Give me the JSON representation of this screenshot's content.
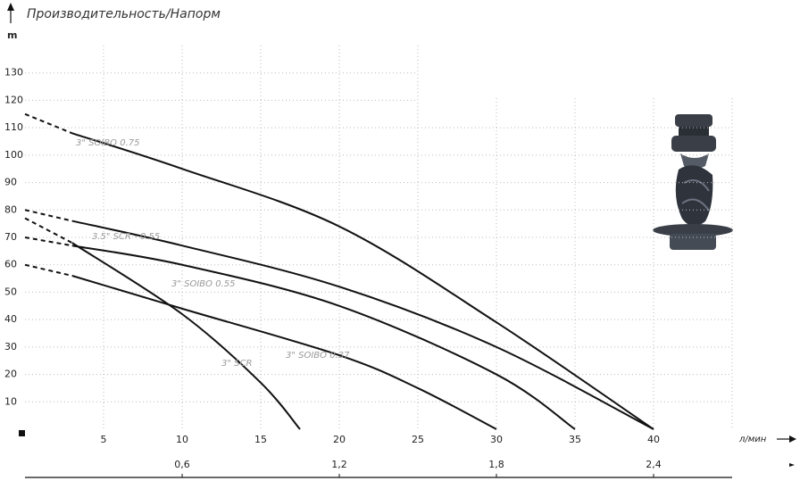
{
  "chart_data": {
    "type": "line",
    "title": "Производительность/Напорм",
    "y_label": "m",
    "x_label": "л/мин",
    "xlim": [
      0,
      45
    ],
    "ylim": [
      0,
      140
    ],
    "xticks": [
      5,
      10,
      15,
      20,
      25,
      30,
      35,
      40
    ],
    "yticks": [
      10,
      20,
      30,
      40,
      50,
      60,
      70,
      80,
      90,
      100,
      110,
      120,
      130
    ],
    "x2lim": [
      0,
      2.7
    ],
    "x2ticks": [
      {
        "value": 0.6,
        "label": "0,6"
      },
      {
        "value": 1.2,
        "label": "1,2"
      },
      {
        "value": 1.8,
        "label": "1,8"
      },
      {
        "value": 2.4,
        "label": "2,4"
      }
    ],
    "grid": true,
    "series": [
      {
        "name": "3\" SOIBO 0.75",
        "color": "#111111",
        "x": [
          0,
          3,
          10,
          20,
          30,
          40
        ],
        "values": [
          115,
          108,
          95,
          74,
          39,
          0
        ]
      },
      {
        "name": "3.5\" SCR - 0.55",
        "color": "#111111",
        "x": [
          0,
          3,
          10,
          20,
          30,
          40
        ],
        "values": [
          80,
          76,
          67,
          52,
          30,
          0
        ]
      },
      {
        "name": "3\" SOIBO 0.55",
        "color": "#111111",
        "x": [
          0,
          3,
          10,
          20,
          30,
          35
        ],
        "values": [
          70,
          67,
          60,
          45,
          20,
          0
        ]
      },
      {
        "name": "3\" SOIBO 0.37",
        "color": "#111111",
        "x": [
          0,
          3,
          10,
          20,
          25,
          30
        ],
        "values": [
          60,
          56,
          44,
          27,
          15,
          0
        ]
      },
      {
        "name": "3\" SCR",
        "color": "#111111",
        "x": [
          0,
          3,
          10,
          15,
          17.5
        ],
        "values": [
          77,
          68,
          42,
          17,
          0
        ]
      }
    ]
  }
}
